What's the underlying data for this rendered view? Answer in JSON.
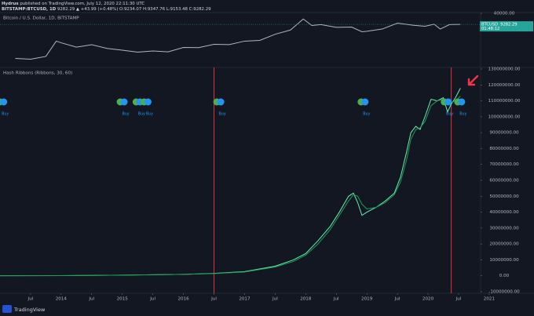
{
  "header": {
    "author": "Hydrus",
    "published": "published on TradingView.com, July 12, 2020 22:11:30 UTC",
    "symbol": "BITSTAMP:BTCUSD, 1D",
    "quote": "9282.29 ▲ +43.99 (+0.48%) O:9234.07 H:9347.76 L:9153.48 C:9282.29"
  },
  "footer": {
    "brand": "TradingView"
  },
  "chart_data": [
    {
      "type": "line",
      "title": "Bitcoin / U.S. Dollar, 1D, BITSTAMP",
      "x": [
        2013.25,
        2013.5,
        2013.75,
        2013.92,
        2014.0,
        2014.25,
        2014.5,
        2014.75,
        2015.0,
        2015.25,
        2015.5,
        2015.75,
        2016.0,
        2016.25,
        2016.5,
        2016.75,
        2017.0,
        2017.25,
        2017.5,
        2017.75,
        2017.96,
        2018.1,
        2018.25,
        2018.5,
        2018.75,
        2018.92,
        2019.0,
        2019.25,
        2019.5,
        2019.75,
        2019.95,
        2020.1,
        2020.2,
        2020.35,
        2020.53
      ],
      "series": [
        {
          "name": "BTCUSD",
          "color": "#b2b5be",
          "values": [
            100,
            90,
            130,
            1000,
            800,
            450,
            620,
            380,
            300,
            230,
            270,
            240,
            430,
            420,
            650,
            630,
            1000,
            1100,
            2500,
            4400,
            19000,
            8000,
            9000,
            6300,
            6500,
            3500,
            3700,
            5000,
            11000,
            8300,
            7200,
            9500,
            5000,
            9000,
            9282.29
          ]
        }
      ],
      "xlim": [
        2013.0,
        2020.86
      ],
      "ylim": [
        30,
        45000
      ],
      "log_scale": true,
      "yticks": [
        {
          "value": 40000,
          "label": "40000.00"
        }
      ],
      "last_value": 9282.29,
      "last_value_color": "#26a69a",
      "countdown": "01:48:12"
    },
    {
      "type": "line",
      "title": "Hash Ribbons (Ribbons, 30, 60)",
      "x": [
        2013.0,
        2014.0,
        2015.0,
        2016.0,
        2016.5,
        2017.0,
        2017.5,
        2017.8,
        2018.0,
        2018.2,
        2018.4,
        2018.55,
        2018.7,
        2018.78,
        2018.85,
        2018.92,
        2019.0,
        2019.15,
        2019.3,
        2019.45,
        2019.55,
        2019.65,
        2019.72,
        2019.8,
        2019.87,
        2019.95,
        2020.05,
        2020.15,
        2020.25,
        2020.32,
        2020.38,
        2020.45,
        2020.53
      ],
      "series": [
        {
          "color": "#69f0ae",
          "values": [
            20000,
            100000,
            400000,
            900000,
            1500000,
            2600000,
            6000000,
            10000000,
            14000000,
            22000000,
            31000000,
            40000000,
            50000000,
            52000000,
            46000000,
            38000000,
            40000000,
            43000000,
            47000000,
            52000000,
            62000000,
            78000000,
            90000000,
            94000000,
            92000000,
            100000000,
            111000000,
            110000000,
            112000000,
            103000000,
            108000000,
            112000000,
            118000000
          ]
        },
        {
          "color": "#1b9e52",
          "values": [
            20000,
            100000,
            400000,
            900000,
            1400000,
            2400000,
            5500000,
            9000000,
            13000000,
            20000000,
            29000000,
            38000000,
            47000000,
            51000000,
            50000000,
            45000000,
            42000000,
            43000000,
            46000000,
            51000000,
            59000000,
            73000000,
            86000000,
            92000000,
            93000000,
            97000000,
            107000000,
            110000000,
            111000000,
            110000000,
            109000000,
            110000000,
            113000000
          ]
        }
      ],
      "xlim": [
        2013.0,
        2020.86
      ],
      "ylim": [
        -11000000,
        131000000
      ],
      "yticks": [
        {
          "value": 130000000,
          "label": "130000000.00"
        },
        {
          "value": 120000000,
          "label": "120000000.00"
        },
        {
          "value": 110000000,
          "label": "110000000.00"
        },
        {
          "value": 100000000,
          "label": "100000000.00"
        },
        {
          "value": 90000000,
          "label": "90000000.00"
        },
        {
          "value": 80000000,
          "label": "80000000.00"
        },
        {
          "value": 70000000,
          "label": "70000000.00"
        },
        {
          "value": 60000000,
          "label": "60000000.00"
        },
        {
          "value": 50000000,
          "label": "50000000.00"
        },
        {
          "value": 40000000,
          "label": "40000000.00"
        },
        {
          "value": 30000000,
          "label": "30000000.00"
        },
        {
          "value": 20000000,
          "label": "20000000.00"
        },
        {
          "value": 10000000,
          "label": "10000000.00"
        },
        {
          "value": 0,
          "label": "0.00"
        },
        {
          "value": -10000000,
          "label": "-10000000.00"
        }
      ],
      "xticks": [
        {
          "value": 2013.5,
          "label": "Jul"
        },
        2014,
        {
          "value": 2014.5,
          "label": "Jul"
        },
        2015,
        {
          "value": 2015.5,
          "label": "Jul"
        },
        2016,
        {
          "value": 2016.5,
          "label": "Jul"
        },
        2017,
        {
          "value": 2017.5,
          "label": "Jul"
        },
        2018,
        {
          "value": 2018.5,
          "label": "Jul"
        },
        2019,
        {
          "value": 2019.5,
          "label": "Jul"
        },
        2020,
        {
          "value": 2020.5,
          "label": "Jul"
        },
        2021
      ],
      "vertical_lines": {
        "x": [
          2016.5,
          2020.38
        ],
        "color": "#f23645"
      },
      "buy_signals": {
        "x": [
          2013.06,
          2015.03,
          2015.29,
          2015.42,
          2016.61,
          2018.97,
          2020.33,
          2020.55
        ],
        "labels": [
          "Buy",
          "Buy",
          "Buy",
          "Buy",
          "Buy",
          "Buy",
          "Buy",
          "Buy"
        ],
        "color": "#2196f3",
        "trend_color": "#4caf50"
      }
    }
  ]
}
